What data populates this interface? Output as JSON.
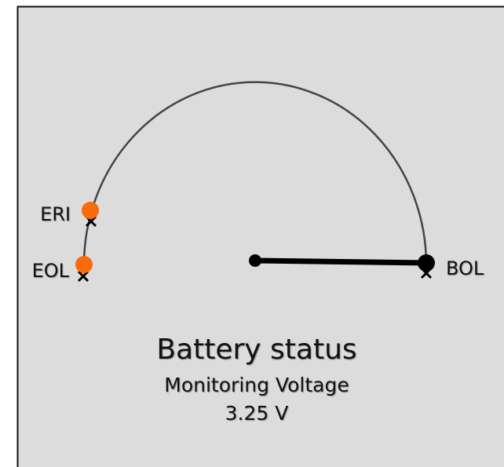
{
  "gauge": {
    "title": "Battery status",
    "subtitle": "Monitoring Voltage",
    "reading": "3.25 V",
    "markers": [
      {
        "label": "ERI"
      },
      {
        "label": "EOL"
      },
      {
        "label": "BOL"
      }
    ]
  }
}
